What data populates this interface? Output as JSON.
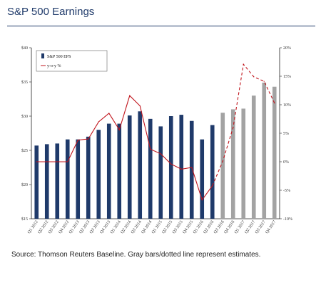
{
  "header": {
    "title": "S&P 500 Earnings"
  },
  "footer": {
    "source": "Source: Thomson Reuters Baseline. Gray bars/dotted line represent estimates."
  },
  "colors": {
    "actual_bar": "#1f3a6a",
    "estimate_bar": "#a3a3a3",
    "yoy_line": "#c0141c",
    "title": "#1f3a6a"
  },
  "chart_data": {
    "type": "bar",
    "title": "S&P 500 Earnings",
    "categories": [
      "Q1 2012",
      "Q2 2012",
      "Q3 2012",
      "Q4 2012",
      "Q1 2013",
      "Q2 2013",
      "Q3 2013",
      "Q4 2013",
      "Q1 2014",
      "Q2 2014",
      "Q3 2014",
      "Q4 2014",
      "Q1 2015",
      "Q2 2015",
      "Q3 2015",
      "Q4 2015",
      "Q1 2016",
      "Q2 2016",
      "Q3 2016",
      "Q4 2016",
      "Q1 2017",
      "Q2 2017",
      "Q3 2017",
      "Q4 2017"
    ],
    "x_tick_labels": [
      "Q1 2012",
      "Q2 2012",
      "Q3 2012",
      "Q4 2012",
      "Q1 2013",
      "Q2 2013",
      "Q3 2013",
      "Q4 2013",
      "Q1 2014",
      "Q2 2014",
      "Q3 2014",
      "Q4 2014",
      "Q1 2015",
      "Q2 2015",
      "Q3 2015",
      "Q4 2015",
      "Q1 2016",
      "Q2 2016",
      "Q3 2016",
      "Q4 2016",
      "Q1 2017",
      "Q2 2017",
      "Q3 2017",
      "Q4 2017"
    ],
    "series": [
      {
        "name": "S&P 500 EPS",
        "type": "bar",
        "axis": "left",
        "values": [
          25.7,
          25.9,
          26.0,
          26.6,
          26.6,
          27.0,
          28.0,
          28.9,
          28.9,
          30.1,
          30.7,
          29.6,
          28.5,
          30.0,
          30.2,
          29.3,
          26.6,
          28.7,
          30.5,
          31.0,
          31.1,
          33.0,
          34.9,
          34.3
        ],
        "estimate": [
          false,
          false,
          false,
          false,
          false,
          false,
          false,
          false,
          false,
          false,
          false,
          false,
          false,
          false,
          false,
          false,
          false,
          false,
          true,
          true,
          true,
          true,
          true,
          true
        ]
      },
      {
        "name": "y-o-y %",
        "type": "line",
        "axis": "right",
        "values": [
          0,
          0,
          0,
          0,
          3.8,
          4.0,
          7.0,
          8.5,
          5.6,
          11.6,
          9.8,
          2.2,
          1.4,
          -0.4,
          -1.3,
          -1.0,
          -6.7,
          -4.2,
          0.1,
          6.0,
          17.1,
          14.9,
          14.1,
          10.3
        ],
        "estimate_from_index": 17
      }
    ],
    "ylim": [
      15,
      40
    ],
    "yticks": [
      "$15",
      "$20",
      "$25",
      "$30",
      "$35",
      "$40"
    ],
    "y2lim": [
      -10,
      20
    ],
    "y2ticks": [
      "-10%",
      "-5%",
      "0%",
      "5%",
      "10%",
      "15%",
      "20%"
    ],
    "legend": {
      "placement": "top-left",
      "entries": [
        "S&P 500 EPS",
        "y-o-y %"
      ]
    },
    "grid": false
  }
}
